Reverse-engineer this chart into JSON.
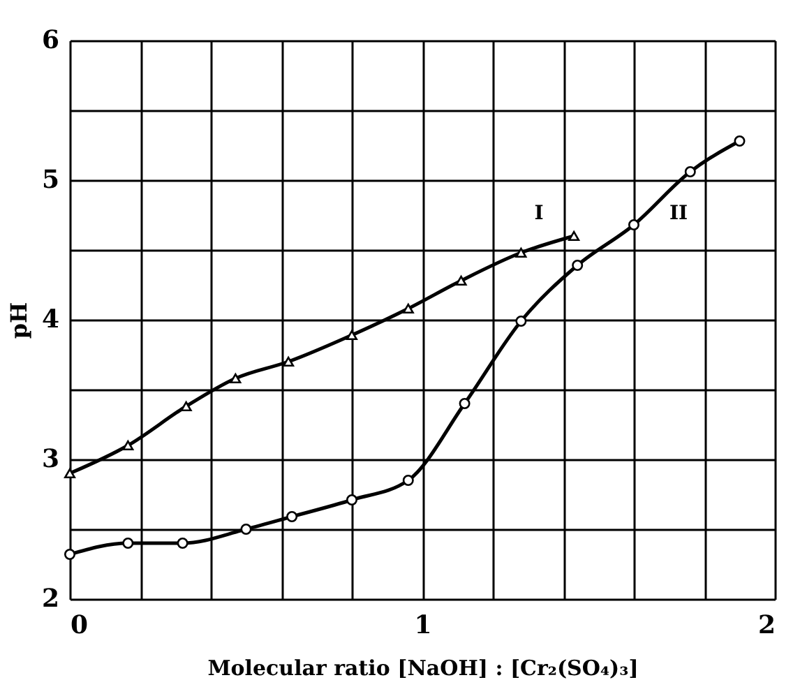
{
  "chart_data": {
    "type": "line",
    "xlabel": "Molecular ratio [NaOH] : [Cr₂(SO₄)₃]",
    "ylabel": "pH",
    "series": [
      {
        "name": "I",
        "color": "#000000",
        "marker": "triangle",
        "x": [
          0,
          0.165,
          0.33,
          0.47,
          0.62,
          0.8,
          0.96,
          1.11,
          1.28,
          1.43
        ],
        "values": [
          2.9,
          3.1,
          3.38,
          3.58,
          3.7,
          3.89,
          4.08,
          4.28,
          4.48,
          4.6
        ]
      },
      {
        "name": "II",
        "color": "#000000",
        "marker": "circle",
        "x": [
          0,
          0.165,
          0.32,
          0.5,
          0.63,
          0.8,
          0.96,
          1.12,
          1.28,
          1.44,
          1.6,
          1.76,
          1.9
        ],
        "values": [
          2.32,
          2.4,
          2.4,
          2.5,
          2.59,
          2.71,
          2.85,
          3.4,
          3.99,
          4.39,
          4.68,
          5.06,
          5.28
        ]
      }
    ],
    "xlim": [
      0,
      2
    ],
    "xticks": [
      0,
      {
        "value": 0.2,
        "label": null
      },
      {
        "value": 0.4,
        "label": null
      },
      {
        "value": 0.6,
        "label": null
      },
      {
        "value": 0.8,
        "label": null
      },
      1,
      {
        "value": 1.2,
        "label": null
      },
      {
        "value": 1.4,
        "label": null
      },
      {
        "value": 1.6,
        "label": null
      },
      {
        "value": 1.8,
        "label": null
      },
      2
    ],
    "ylim": [
      2,
      6
    ],
    "yticks": [
      2,
      {
        "value": 2.5,
        "label": null
      },
      3,
      {
        "value": 3.5,
        "label": null
      },
      4,
      {
        "value": 4.5,
        "label": null
      },
      5,
      {
        "value": 5.5,
        "label": null
      },
      6
    ],
    "grid": true,
    "line_style": "solid"
  }
}
